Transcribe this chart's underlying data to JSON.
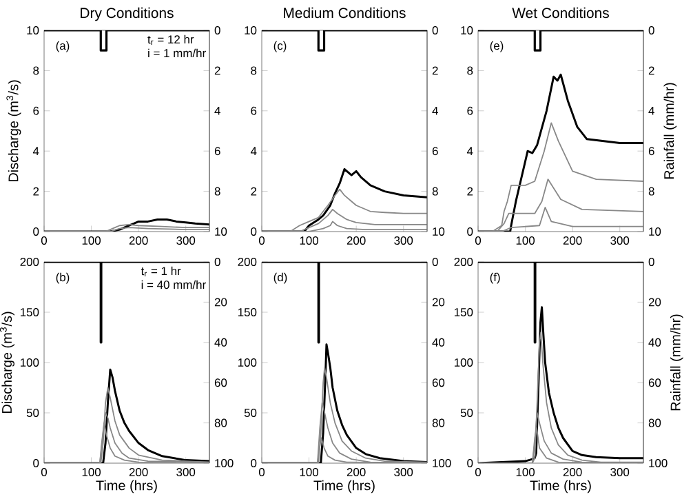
{
  "chart_data": [
    {
      "type": "line",
      "title": "Dry Conditions",
      "ylabel": "Discharge (m$^{3}$/s)",
      "annotations": [
        "(a)",
        "t$_{r}$ = 12 hr",
        "i = 1 mm/hr"
      ],
      "xlim": [
        0,
        350
      ],
      "xticks": [
        0,
        100,
        200,
        300
      ],
      "ylim": [
        0,
        10
      ],
      "yticks": [
        0,
        2,
        4,
        6,
        8,
        10
      ],
      "y2lim": [
        10,
        0
      ],
      "y2ticks": [
        0,
        2,
        4,
        6,
        8,
        10
      ],
      "series": [
        {
          "color": "#000000",
          "x": [
            0,
            140,
            160,
            180,
            190,
            200,
            220,
            240,
            260,
            280,
            300,
            320,
            350
          ],
          "values": [
            0,
            0,
            0.1,
            0.3,
            0.4,
            0.5,
            0.5,
            0.6,
            0.6,
            0.5,
            0.45,
            0.4,
            0.35
          ]
        },
        {
          "color": "#888888",
          "x": [
            0,
            130,
            150,
            160,
            180,
            200,
            250,
            300,
            350
          ],
          "values": [
            0,
            0,
            0.2,
            0.3,
            0.35,
            0.3,
            0.25,
            0.2,
            0.2
          ]
        },
        {
          "color": "#888888",
          "x": [
            0,
            140,
            160,
            180,
            220,
            300,
            350
          ],
          "values": [
            0,
            0,
            0.15,
            0.2,
            0.15,
            0.1,
            0.1
          ]
        },
        {
          "color": "#000000",
          "axis": "y2",
          "x": [
            0,
            120,
            120,
            132,
            132,
            350
          ],
          "values": [
            0,
            0,
            1,
            1,
            0,
            0
          ]
        }
      ]
    },
    {
      "type": "line",
      "title": "Medium Conditions",
      "annotations": [
        "(c)"
      ],
      "xlim": [
        0,
        350
      ],
      "xticks": [
        0,
        100,
        200,
        300
      ],
      "ylim": [
        0,
        10
      ],
      "yticks": [
        0,
        2,
        4,
        6,
        8,
        10
      ],
      "y2lim": [
        10,
        0
      ],
      "y2ticks": [
        0,
        2,
        4,
        6,
        8,
        10
      ],
      "series": [
        {
          "color": "#000000",
          "x": [
            0,
            90,
            100,
            120,
            130,
            145,
            155,
            165,
            175,
            180,
            190,
            200,
            210,
            230,
            260,
            300,
            350
          ],
          "values": [
            0,
            0,
            0.3,
            0.6,
            0.8,
            1.3,
            1.9,
            2.4,
            3.1,
            3.0,
            2.8,
            3.0,
            2.7,
            2.3,
            2.0,
            1.8,
            1.7
          ]
        },
        {
          "color": "#888888",
          "x": [
            0,
            60,
            80,
            100,
            120,
            140,
            155,
            165,
            175,
            200,
            230,
            260,
            300,
            350
          ],
          "values": [
            0,
            0,
            0.3,
            0.5,
            0.7,
            1.3,
            1.8,
            2.1,
            1.8,
            1.3,
            1.0,
            0.95,
            0.9,
            0.9
          ]
        },
        {
          "color": "#888888",
          "x": [
            0,
            80,
            100,
            120,
            140,
            150,
            160,
            180,
            200,
            240,
            300,
            350
          ],
          "values": [
            0,
            0,
            0.2,
            0.4,
            0.8,
            1.1,
            0.9,
            0.6,
            0.45,
            0.35,
            0.35,
            0.35
          ]
        },
        {
          "color": "#888888",
          "x": [
            0,
            100,
            130,
            145,
            150,
            160,
            180,
            220,
            350
          ],
          "values": [
            0,
            0,
            0.15,
            0.3,
            0.5,
            0.3,
            0.15,
            0.1,
            0.1
          ]
        },
        {
          "color": "#000000",
          "axis": "y2",
          "x": [
            0,
            120,
            120,
            132,
            132,
            350
          ],
          "values": [
            0,
            0,
            1,
            1,
            0,
            0
          ]
        }
      ]
    },
    {
      "type": "line",
      "title": "Wet Conditions",
      "y2label": "Rainfall (mm/hr)",
      "annotations": [
        "(e)"
      ],
      "xlim": [
        0,
        350
      ],
      "xticks": [
        0,
        100,
        200,
        300
      ],
      "ylim": [
        0,
        10
      ],
      "yticks": [
        0,
        2,
        4,
        6,
        8,
        10
      ],
      "y2lim": [
        10,
        0
      ],
      "y2ticks": [
        0,
        2,
        4,
        6,
        8,
        10
      ],
      "series": [
        {
          "color": "#000000",
          "x": [
            0,
            68,
            70,
            80,
            90,
            105,
            115,
            125,
            145,
            160,
            168,
            175,
            190,
            210,
            230,
            300,
            350
          ],
          "values": [
            0,
            0,
            0.3,
            1.5,
            2.5,
            4.0,
            3.9,
            4.3,
            6.0,
            7.7,
            7.5,
            7.8,
            6.5,
            5.2,
            4.6,
            4.4,
            4.4
          ]
        },
        {
          "color": "#888888",
          "x": [
            0,
            30,
            50,
            55,
            62,
            70,
            100,
            120,
            140,
            155,
            170,
            200,
            250,
            350
          ],
          "values": [
            0,
            0,
            0.3,
            1.0,
            1.5,
            2.3,
            2.3,
            2.5,
            4.0,
            5.4,
            4.5,
            3.0,
            2.6,
            2.5
          ]
        },
        {
          "color": "#888888",
          "x": [
            0,
            40,
            55,
            65,
            120,
            135,
            148,
            175,
            220,
            350
          ],
          "values": [
            0,
            0,
            0.4,
            0.9,
            0.9,
            1.5,
            2.6,
            1.6,
            1.1,
            1.0
          ]
        },
        {
          "color": "#888888",
          "x": [
            0,
            50,
            70,
            130,
            142,
            155,
            200,
            350
          ],
          "values": [
            0,
            0,
            0.2,
            0.3,
            1.2,
            0.5,
            0.25,
            0.25
          ]
        },
        {
          "color": "#000000",
          "axis": "y2",
          "x": [
            0,
            120,
            120,
            132,
            132,
            350
          ],
          "values": [
            0,
            0,
            1,
            1,
            0,
            0
          ]
        }
      ]
    },
    {
      "type": "line",
      "xlabel": "Time (hrs)",
      "ylabel": "Discharge (m$^{3}$/s)",
      "annotations": [
        "(b)",
        "t$_{r}$ = 1 hr",
        "i = 40 mm/hr"
      ],
      "xlim": [
        0,
        350
      ],
      "xticks": [
        0,
        100,
        200,
        300
      ],
      "ylim": [
        0,
        200
      ],
      "yticks": [
        0,
        50,
        100,
        150,
        200
      ],
      "y2lim": [
        100,
        0
      ],
      "y2ticks": [
        0,
        20,
        40,
        60,
        80,
        100
      ],
      "series": [
        {
          "color": "#000000",
          "x": [
            0,
            125,
            130,
            135,
            140,
            145,
            150,
            160,
            170,
            180,
            200,
            220,
            250,
            300,
            350
          ],
          "values": [
            0,
            0,
            20,
            60,
            93,
            85,
            72,
            52,
            40,
            32,
            20,
            13,
            7,
            3,
            2
          ]
        },
        {
          "color": "#888888",
          "x": [
            0,
            120,
            125,
            130,
            135,
            140,
            150,
            160,
            180,
            200,
            250,
            350
          ],
          "values": [
            0,
            0,
            20,
            60,
            75,
            65,
            42,
            28,
            15,
            8,
            3,
            1
          ]
        },
        {
          "color": "#888888",
          "x": [
            0,
            118,
            125,
            130,
            135,
            140,
            150,
            165,
            180,
            220,
            350
          ],
          "values": [
            0,
            0,
            30,
            50,
            45,
            35,
            20,
            10,
            5,
            2,
            1
          ]
        },
        {
          "color": "#888888",
          "x": [
            0,
            118,
            122,
            127,
            132,
            140,
            150,
            170,
            200,
            350
          ],
          "values": [
            0,
            0,
            20,
            40,
            28,
            15,
            7,
            3,
            1,
            0
          ]
        },
        {
          "color": "#000000",
          "axis": "y2",
          "x": [
            0,
            120,
            120,
            121,
            121,
            350
          ],
          "values": [
            0,
            0,
            40,
            40,
            0,
            0
          ]
        }
      ]
    },
    {
      "type": "line",
      "xlabel": "Time (hrs)",
      "annotations": [
        "(d)"
      ],
      "xlim": [
        0,
        350
      ],
      "xticks": [
        0,
        100,
        200,
        300
      ],
      "ylim": [
        0,
        200
      ],
      "yticks": [
        0,
        50,
        100,
        150,
        200
      ],
      "y2lim": [
        100,
        0
      ],
      "y2ticks": [
        0,
        20,
        40,
        60,
        80,
        100
      ],
      "series": [
        {
          "color": "#000000",
          "x": [
            0,
            125,
            130,
            135,
            137,
            140,
            145,
            150,
            160,
            170,
            180,
            200,
            220,
            250,
            300,
            350
          ],
          "values": [
            0,
            0,
            30,
            90,
            118,
            110,
            95,
            75,
            52,
            38,
            28,
            15,
            9,
            5,
            2,
            1
          ]
        },
        {
          "color": "#888888",
          "x": [
            0,
            120,
            125,
            130,
            133,
            137,
            145,
            155,
            170,
            190,
            220,
            260,
            350
          ],
          "values": [
            0,
            0,
            30,
            80,
            95,
            85,
            60,
            40,
            22,
            12,
            5,
            2,
            1
          ]
        },
        {
          "color": "#888888",
          "x": [
            0,
            118,
            123,
            128,
            133,
            140,
            150,
            165,
            190,
            230,
            350
          ],
          "values": [
            0,
            0,
            35,
            60,
            50,
            35,
            20,
            10,
            4,
            1,
            0
          ]
        },
        {
          "color": "#888888",
          "x": [
            0,
            118,
            122,
            126,
            132,
            140,
            155,
            180,
            350
          ],
          "values": [
            0,
            0,
            15,
            25,
            15,
            7,
            3,
            1,
            0
          ]
        },
        {
          "color": "#000000",
          "axis": "y2",
          "x": [
            0,
            120,
            120,
            121,
            121,
            350
          ],
          "values": [
            0,
            0,
            40,
            40,
            0,
            0
          ]
        }
      ]
    },
    {
      "type": "line",
      "xlabel": "Time (hrs)",
      "y2label": "Rainfall (mm/hr)",
      "annotations": [
        "(f)"
      ],
      "xlim": [
        0,
        350
      ],
      "xticks": [
        0,
        100,
        200,
        300
      ],
      "ylim": [
        0,
        200
      ],
      "yticks": [
        0,
        50,
        100,
        150,
        200
      ],
      "y2lim": [
        100,
        0
      ],
      "y2ticks": [
        0,
        20,
        40,
        60,
        80,
        100
      ],
      "series": [
        {
          "color": "#000000",
          "x": [
            0,
            50,
            100,
            115,
            120,
            123,
            128,
            132,
            135,
            138,
            142,
            150,
            160,
            170,
            180,
            200,
            220,
            250,
            300,
            350
          ],
          "values": [
            0,
            1,
            2,
            4,
            5,
            10,
            80,
            140,
            155,
            130,
            100,
            70,
            50,
            35,
            25,
            12,
            8,
            6,
            5,
            5
          ]
        },
        {
          "color": "#888888",
          "x": [
            0,
            115,
            120,
            125,
            130,
            133,
            137,
            145,
            155,
            170,
            190,
            220,
            260,
            350
          ],
          "values": [
            0,
            0,
            5,
            60,
            120,
            130,
            100,
            60,
            35,
            18,
            8,
            3,
            1,
            1
          ]
        },
        {
          "color": "#888888",
          "x": [
            0,
            115,
            120,
            125,
            130,
            140,
            155,
            180,
            220,
            350
          ],
          "values": [
            0,
            0,
            20,
            50,
            40,
            22,
            10,
            4,
            1,
            0
          ]
        },
        {
          "color": "#888888",
          "x": [
            0,
            115,
            120,
            124,
            130,
            145,
            170,
            350
          ],
          "values": [
            0,
            0,
            25,
            35,
            15,
            5,
            1,
            0
          ]
        },
        {
          "color": "#000000",
          "axis": "y2",
          "x": [
            0,
            120,
            120,
            121,
            121,
            350
          ],
          "values": [
            0,
            0,
            40,
            40,
            0,
            0
          ]
        }
      ]
    }
  ]
}
